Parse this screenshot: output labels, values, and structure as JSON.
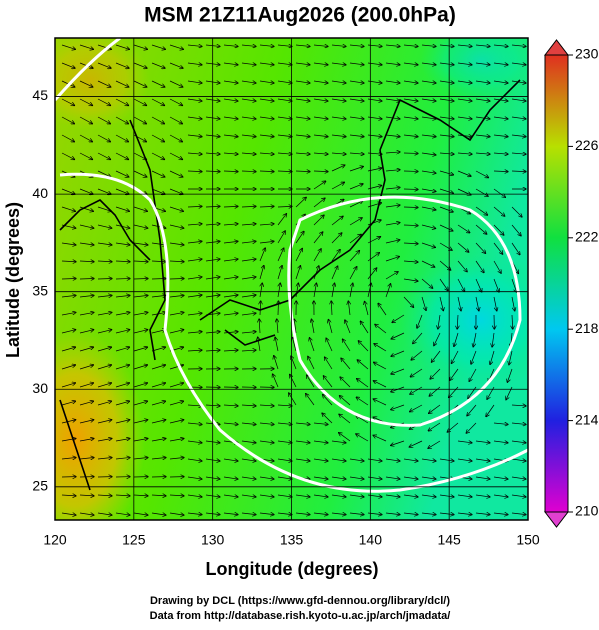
{
  "title": "MSM 21Z11Aug2026 (200.0hPa)",
  "x_label": "Longitude (degrees)",
  "y_label": "Latitude  (degrees)",
  "xlim": [
    120,
    150
  ],
  "xticks": [
    120,
    125,
    130,
    135,
    140,
    145,
    150
  ],
  "ylim": [
    23.3,
    48
  ],
  "yticks": [
    25,
    30,
    35,
    40,
    45
  ],
  "colorbar": {
    "lim": [
      210,
      230
    ],
    "ticks": [
      210,
      214,
      218,
      222,
      226,
      230
    ]
  },
  "credits": [
    "Drawing by DCL (https://www.gfd-dennou.org/library/dcl/)",
    "Data from http://database.rish.kyoto-u.ac.jp/arch/jmadata/"
  ]
}
